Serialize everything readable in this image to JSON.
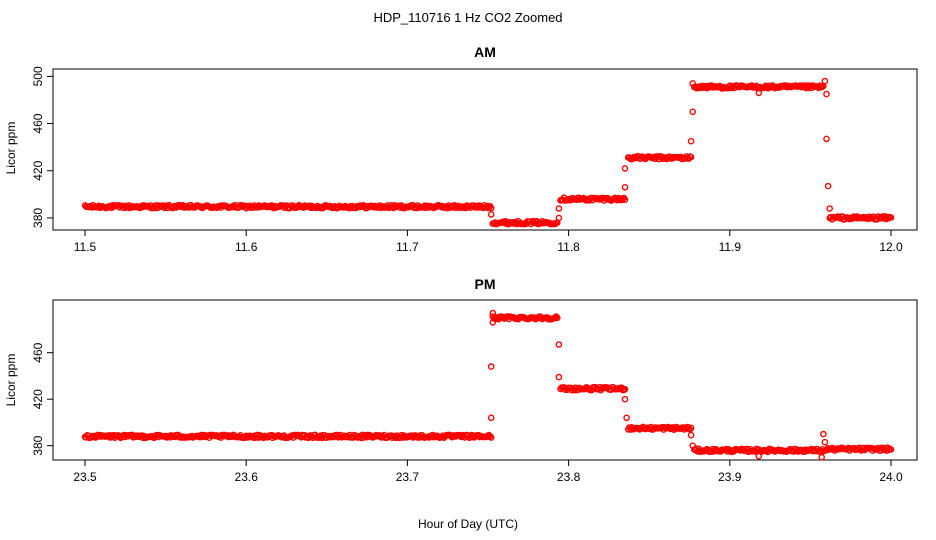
{
  "figure": {
    "title": "HDP_110716  1 Hz CO2 Zoomed",
    "xlabel": "Hour of Day (UTC)"
  },
  "colors": {
    "points": "#ff0000"
  },
  "chart_data": [
    {
      "type": "scatter",
      "title": "AM",
      "xlabel": "",
      "ylabel": "Licor ppm",
      "xlim": [
        11.5,
        12.0
      ],
      "ylim": [
        374,
        502
      ],
      "xticks": [
        "11.5",
        "11.6",
        "11.7",
        "11.8",
        "11.9",
        "12.0"
      ],
      "yticks": [
        "380",
        "420",
        "460",
        "500"
      ],
      "grid": false,
      "segments": [
        {
          "x": [
            11.5,
            11.752
          ],
          "y": 389.5
        },
        {
          "x": [
            11.753,
            11.793
          ],
          "y": 376
        },
        {
          "x": [
            11.795,
            11.835
          ],
          "y": 396
        },
        {
          "x": [
            11.837,
            11.876
          ],
          "y": 431
        },
        {
          "x": [
            11.878,
            11.958
          ],
          "y": 491
        },
        {
          "x": [
            11.962,
            12.0
          ],
          "y": 380
        }
      ],
      "transitions": [
        {
          "x": 11.752,
          "y": 383
        },
        {
          "x": 11.794,
          "y": 380
        },
        {
          "x": 11.794,
          "y": 388
        },
        {
          "x": 11.835,
          "y": 406
        },
        {
          "x": 11.835,
          "y": 422
        },
        {
          "x": 11.876,
          "y": 445
        },
        {
          "x": 11.877,
          "y": 470
        },
        {
          "x": 11.877,
          "y": 494
        },
        {
          "x": 11.918,
          "y": 486
        },
        {
          "x": 11.959,
          "y": 496
        },
        {
          "x": 11.96,
          "y": 485
        },
        {
          "x": 11.96,
          "y": 447
        },
        {
          "x": 11.961,
          "y": 407
        },
        {
          "x": 11.962,
          "y": 388
        }
      ]
    },
    {
      "type": "scatter",
      "title": "PM",
      "xlabel": "",
      "ylabel": "Licor ppm",
      "xlim": [
        23.5,
        24.0
      ],
      "ylim": [
        372,
        501
      ],
      "xticks": [
        "23.5",
        "23.6",
        "23.7",
        "23.8",
        "23.9",
        "24.0"
      ],
      "yticks": [
        "380",
        "420",
        "460"
      ],
      "grid": false,
      "segments": [
        {
          "x": [
            23.5,
            23.752
          ],
          "y": 388
        },
        {
          "x": [
            23.753,
            23.793
          ],
          "y": 490
        },
        {
          "x": [
            23.795,
            23.835
          ],
          "y": 429
        },
        {
          "x": [
            23.837,
            23.876
          ],
          "y": 395
        },
        {
          "x": [
            23.878,
            23.958
          ],
          "y": 376
        },
        {
          "x": [
            23.96,
            24.0
          ],
          "y": 377
        }
      ],
      "transitions": [
        {
          "x": 23.752,
          "y": 404
        },
        {
          "x": 23.752,
          "y": 448
        },
        {
          "x": 23.753,
          "y": 486
        },
        {
          "x": 23.753,
          "y": 494
        },
        {
          "x": 23.794,
          "y": 467
        },
        {
          "x": 23.794,
          "y": 439
        },
        {
          "x": 23.835,
          "y": 420
        },
        {
          "x": 23.836,
          "y": 404
        },
        {
          "x": 23.876,
          "y": 389
        },
        {
          "x": 23.877,
          "y": 380
        },
        {
          "x": 23.918,
          "y": 371
        },
        {
          "x": 23.957,
          "y": 370
        },
        {
          "x": 23.958,
          "y": 390
        },
        {
          "x": 23.959,
          "y": 383
        }
      ]
    }
  ]
}
